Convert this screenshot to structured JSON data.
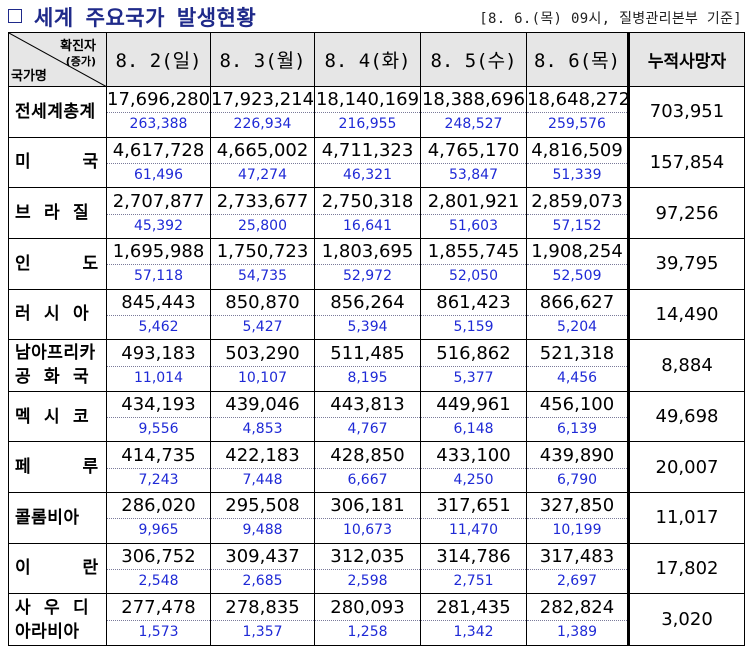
{
  "header": {
    "title_parts": [
      "세계",
      "주요국가",
      "발생현황"
    ],
    "source": "[8. 6.(목) 09시, 질병관리본부 기준]"
  },
  "table": {
    "corner": {
      "top_label": "확진자",
      "sub_label": "(증가)",
      "bottom_label": "국가명"
    },
    "date_headers": [
      "8. 2(일)",
      "8. 3(월)",
      "8. 4(화)",
      "8. 5(수)",
      "8. 6(목)"
    ],
    "deaths_header": "누적사망자",
    "rows": [
      {
        "country": [
          "전세계총계"
        ],
        "totals": [
          "17,696,280",
          "17,923,214",
          "18,140,169",
          "18,388,696",
          "18,648,272"
        ],
        "increases": [
          "263,388",
          "226,934",
          "216,955",
          "248,527",
          "259,576"
        ],
        "deaths": "703,951"
      },
      {
        "country": [
          "미        국"
        ],
        "totals": [
          "4,617,728",
          "4,665,002",
          "4,711,323",
          "4,765,170",
          "4,816,509"
        ],
        "increases": [
          "61,496",
          "47,274",
          "46,321",
          "53,847",
          "51,339"
        ],
        "deaths": "157,854"
      },
      {
        "country": [
          "브  라  질"
        ],
        "totals": [
          "2,707,877",
          "2,733,677",
          "2,750,318",
          "2,801,921",
          "2,859,073"
        ],
        "increases": [
          "45,392",
          "25,800",
          "16,641",
          "51,603",
          "57,152"
        ],
        "deaths": "97,256"
      },
      {
        "country": [
          "인        도"
        ],
        "totals": [
          "1,695,988",
          "1,750,723",
          "1,803,695",
          "1,855,745",
          "1,908,254"
        ],
        "increases": [
          "57,118",
          "54,735",
          "52,972",
          "52,050",
          "52,509"
        ],
        "deaths": "39,795"
      },
      {
        "country": [
          "러  시  아"
        ],
        "totals": [
          "845,443",
          "850,870",
          "856,264",
          "861,423",
          "866,627"
        ],
        "increases": [
          "5,462",
          "5,427",
          "5,394",
          "5,159",
          "5,204"
        ],
        "deaths": "14,490"
      },
      {
        "country": [
          "남아프리카",
          "공  화  국"
        ],
        "totals": [
          "493,183",
          "503,290",
          "511,485",
          "516,862",
          "521,318"
        ],
        "increases": [
          "11,014",
          "10,107",
          "8,195",
          "5,377",
          "4,456"
        ],
        "deaths": "8,884"
      },
      {
        "country": [
          "멕  시  코"
        ],
        "totals": [
          "434,193",
          "439,046",
          "443,813",
          "449,961",
          "456,100"
        ],
        "increases": [
          "9,556",
          "4,853",
          "4,767",
          "6,148",
          "6,139"
        ],
        "deaths": "49,698"
      },
      {
        "country": [
          "페        루"
        ],
        "totals": [
          "414,735",
          "422,183",
          "428,850",
          "433,100",
          "439,890"
        ],
        "increases": [
          "7,243",
          "7,448",
          "6,667",
          "4,250",
          "6,790"
        ],
        "deaths": "20,007"
      },
      {
        "country": [
          "콜롬비아"
        ],
        "totals": [
          "286,020",
          "295,508",
          "306,181",
          "317,651",
          "327,850"
        ],
        "increases": [
          "9,965",
          "9,488",
          "10,673",
          "11,470",
          "10,199"
        ],
        "deaths": "11,017"
      },
      {
        "country": [
          "이        란"
        ],
        "totals": [
          "306,752",
          "309,437",
          "312,035",
          "314,786",
          "317,483"
        ],
        "increases": [
          "2,548",
          "2,685",
          "2,598",
          "2,751",
          "2,697"
        ],
        "deaths": "17,802"
      },
      {
        "country": [
          "사  우  디",
          "아라비아"
        ],
        "totals": [
          "277,478",
          "278,835",
          "280,093",
          "281,435",
          "282,824"
        ],
        "increases": [
          "1,573",
          "1,357",
          "1,258",
          "1,342",
          "1,389"
        ],
        "deaths": "3,020"
      }
    ]
  },
  "colors": {
    "title": "#1f2a8a",
    "increase_text": "#1f2ad6",
    "header_bg": "#e6e6e6"
  },
  "icons": {
    "title_marker": "checkbox-square-icon"
  }
}
